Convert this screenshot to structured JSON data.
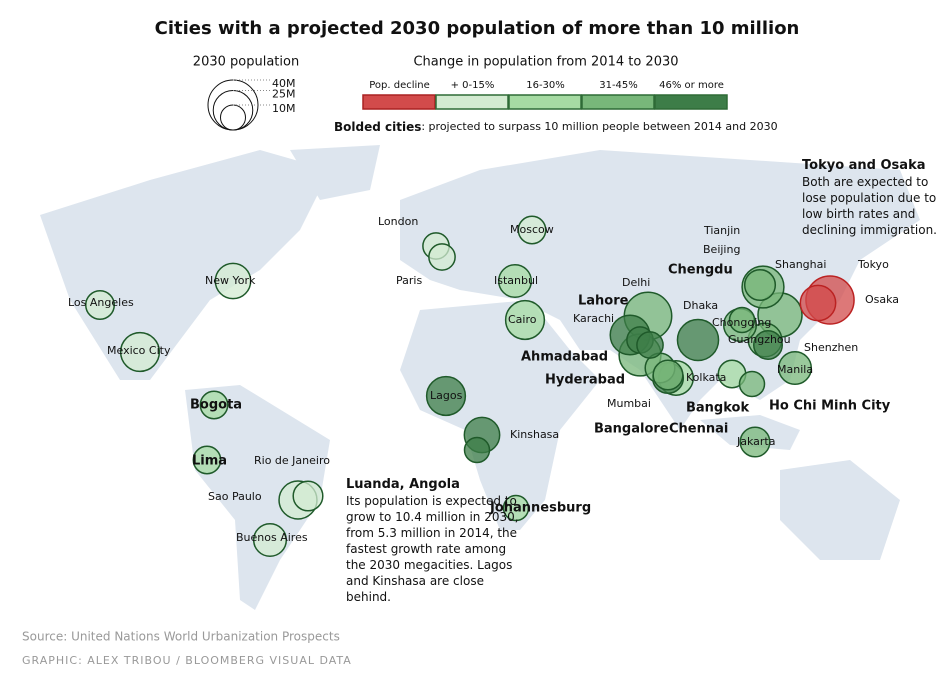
{
  "title": "Cities with a projected 2030 population of more than 10 million",
  "size_legend": {
    "title": "2030 population",
    "sizes": [
      {
        "value": 40,
        "label": "40M"
      },
      {
        "value": 25,
        "label": "25M"
      },
      {
        "value": 10,
        "label": "10M"
      }
    ]
  },
  "color_legend": {
    "title": "Change in population from 2014 to 2030",
    "classes": [
      {
        "label": "Pop. decline",
        "color": "#d24b4b"
      },
      {
        "label": "+ 0-15%",
        "color": "#d3ebd1"
      },
      {
        "label": "16-30%",
        "color": "#a6dba3"
      },
      {
        "label": "31-45%",
        "color": "#78b77a"
      },
      {
        "label": "46% or more",
        "color": "#3d7d48"
      }
    ]
  },
  "bold_note": {
    "bold": "Bolded cities",
    "text": ": projected to surpass 10 million people between 2014 and 2030"
  },
  "cities": [
    {
      "label": "Tokyo",
      "population": 37,
      "change": "Pop. decline",
      "bold": false
    },
    {
      "label": "Osaka",
      "population": 20,
      "change": "Pop. decline",
      "bold": false
    },
    {
      "label": "London",
      "population": 11,
      "change": "+ 0-15%",
      "bold": false
    },
    {
      "label": "Paris",
      "population": 11,
      "change": "+ 0-15%",
      "bold": false
    },
    {
      "label": "Moscow",
      "population": 12,
      "change": "+ 0-15%",
      "bold": false
    },
    {
      "label": "Istanbul",
      "population": 17,
      "change": "16-30%",
      "bold": false
    },
    {
      "label": "Cairo",
      "population": 24,
      "change": "16-30%",
      "bold": false
    },
    {
      "label": "New York",
      "population": 20,
      "change": "+ 0-15%",
      "bold": false
    },
    {
      "label": "Los Angeles",
      "population": 13,
      "change": "+ 0-15%",
      "bold": false
    },
    {
      "label": "Mexico City",
      "population": 24,
      "change": "+ 0-15%",
      "bold": false
    },
    {
      "label": "Bogota",
      "population": 12,
      "change": "16-30%",
      "bold": true
    },
    {
      "label": "Lima",
      "population": 12,
      "change": "16-30%",
      "bold": true
    },
    {
      "label": "Rio de Janeiro",
      "population": 14,
      "change": "+ 0-15%",
      "bold": false
    },
    {
      "label": "Sao Paulo",
      "population": 23,
      "change": "+ 0-15%",
      "bold": false
    },
    {
      "label": "Buenos Aires",
      "population": 17,
      "change": "+ 0-15%",
      "bold": false
    },
    {
      "label": "Lagos",
      "population": 24,
      "change": "46% or more",
      "bold": false
    },
    {
      "label": "Kinshasa",
      "population": 20,
      "change": "46% or more",
      "bold": false
    },
    {
      "label": "Johannesburg",
      "population": 10,
      "change": "16-30%",
      "bold": true
    },
    {
      "label": "Delhi",
      "population": 36,
      "change": "31-45%",
      "bold": false
    },
    {
      "label": "Karachi",
      "population": 25,
      "change": "46% or more",
      "bold": false
    },
    {
      "label": "Lahore",
      "population": 11,
      "change": "46% or more",
      "bold": true
    },
    {
      "label": "Mumbai",
      "population": 28,
      "change": "31-45%",
      "bold": false
    },
    {
      "label": "Ahmadabad",
      "population": 11,
      "change": "46% or more",
      "bold": true
    },
    {
      "label": "Dhaka",
      "population": 27,
      "change": "46% or more",
      "bold": false
    },
    {
      "label": "Hyderabad",
      "population": 14,
      "change": "31-45%",
      "bold": true
    },
    {
      "label": "Kolkata",
      "population": 19,
      "change": "16-30%",
      "bold": false
    },
    {
      "label": "Bangalore",
      "population": 15,
      "change": "46% or more",
      "bold": true
    },
    {
      "label": "Chennai",
      "population": 14,
      "change": "31-45%",
      "bold": true
    },
    {
      "label": "Bangkok",
      "population": 12,
      "change": "16-30%",
      "bold": true
    },
    {
      "label": "Ho Chi Minh City",
      "population": 10,
      "change": "31-45%",
      "bold": true
    },
    {
      "label": "Manila",
      "population": 17,
      "change": "31-45%",
      "bold": false
    },
    {
      "label": "Jakarta",
      "population": 14,
      "change": "31-45%",
      "bold": false
    },
    {
      "label": "Chengdu",
      "population": 10,
      "change": "31-45%",
      "bold": true
    },
    {
      "label": "Chongqing",
      "population": 17,
      "change": "31-45%",
      "bold": false
    },
    {
      "label": "Beijing",
      "population": 28,
      "change": "31-45%",
      "bold": false
    },
    {
      "label": "Tianjin",
      "population": 15,
      "change": "31-45%",
      "bold": false
    },
    {
      "label": "Shanghai",
      "population": 31,
      "change": "31-45%",
      "bold": false
    },
    {
      "label": "Guangzhou",
      "population": 18,
      "change": "31-45%",
      "bold": false
    },
    {
      "label": "Shenzhen",
      "population": 13,
      "change": "46% or more",
      "bold": false
    },
    {
      "label": "Luanda, Angola",
      "population": 10,
      "change": "46% or more",
      "bold": true
    }
  ],
  "annotations": [
    {
      "title": "Tokyo and Osaka",
      "text": "Both are expected to lose population due to low birth rates and declining immigration."
    },
    {
      "title": "Luanda, Angola",
      "text": "Its population is expected to grow to 10.4 million in 2030, from 5.3 million in 2014, the fastest growth rate among the 2030 megacities. Lagos and Kinshasa are close behind."
    }
  ],
  "source": "Source: United Nations World Urbanization Prospects",
  "credit": "GRAPHIC: ALEX TRIBOU / BLOOMBERG VISUAL DATA"
}
